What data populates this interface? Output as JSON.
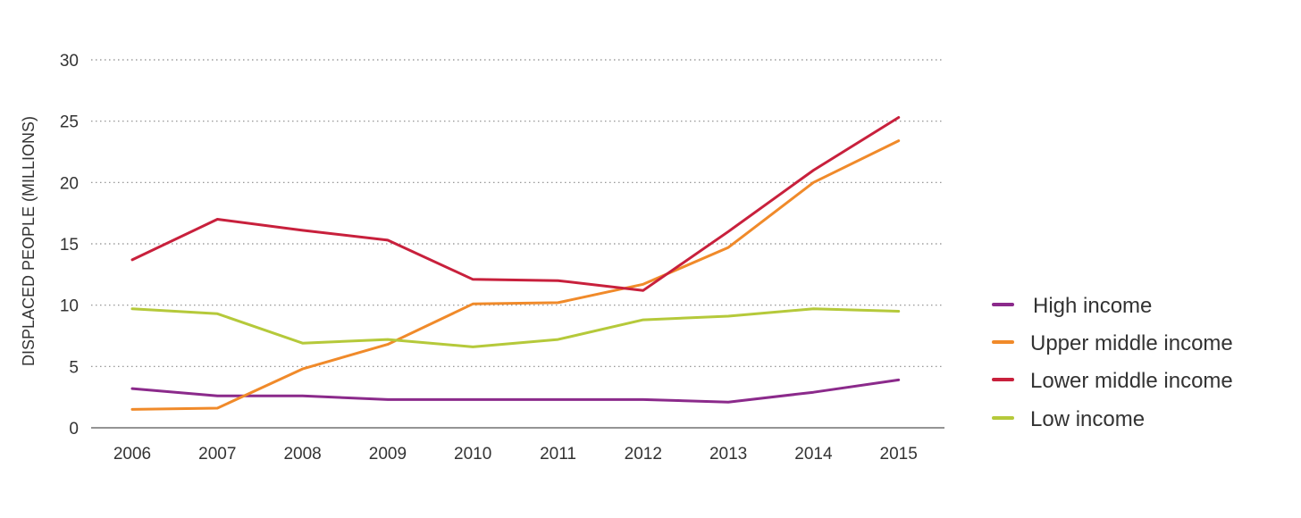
{
  "chart_data": {
    "type": "line",
    "ylabel": "DISPLACED PEOPLE (MILLIONS)",
    "xlabel": "",
    "ylim": [
      0,
      30
    ],
    "yticks": [
      0,
      5,
      10,
      15,
      20,
      25,
      30
    ],
    "grid": "horizontal dotted",
    "legend_position": "right",
    "x": [
      "2006",
      "2007",
      "2008",
      "2009",
      "2010",
      "2011",
      "2012",
      "2013",
      "2014",
      "2015"
    ],
    "series": [
      {
        "name": "High income",
        "color": "#8b2a8b",
        "values": [
          3.2,
          2.6,
          2.6,
          2.3,
          2.3,
          2.3,
          2.3,
          2.1,
          2.9,
          3.9
        ]
      },
      {
        "name": "Upper middle income",
        "color": "#f08a2a",
        "values": [
          1.5,
          1.6,
          4.8,
          6.8,
          10.1,
          10.2,
          11.7,
          14.7,
          20.0,
          23.4
        ]
      },
      {
        "name": "Lower middle income",
        "color": "#c8203c",
        "values": [
          13.7,
          17.0,
          16.1,
          15.3,
          12.1,
          12.0,
          11.2,
          16.0,
          21.0,
          25.3
        ]
      },
      {
        "name": "Low income",
        "color": "#b5c93a",
        "values": [
          9.7,
          9.3,
          6.9,
          7.2,
          6.6,
          7.2,
          8.8,
          9.1,
          9.7,
          9.5
        ]
      }
    ]
  }
}
